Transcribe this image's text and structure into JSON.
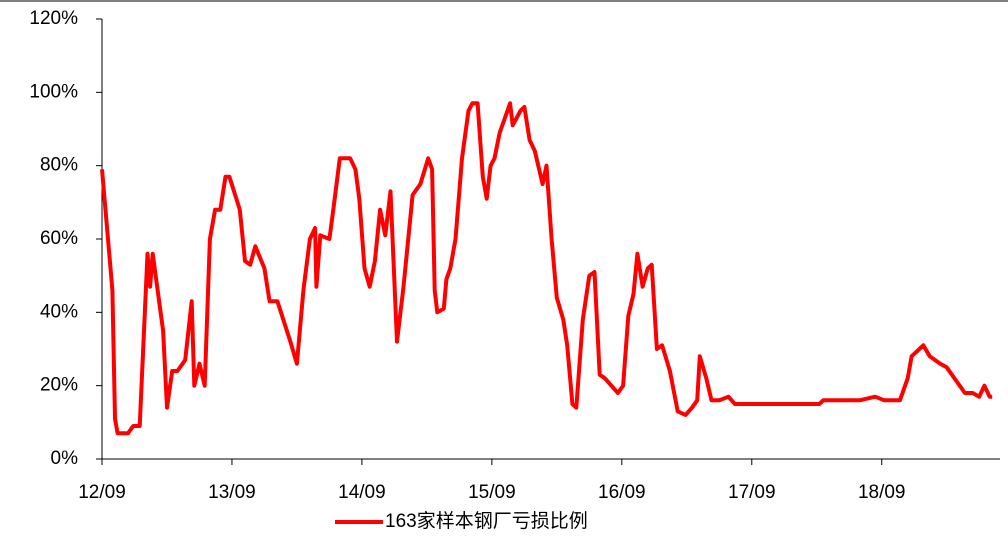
{
  "chart_data": {
    "type": "line",
    "x": [
      2012.67,
      2012.75,
      2012.77,
      2012.79,
      2012.87,
      2012.91,
      2012.96,
      2013.02,
      2013.04,
      2013.06,
      2013.14,
      2013.17,
      2013.21,
      2013.25,
      2013.31,
      2013.36,
      2013.38,
      2013.42,
      2013.46,
      2013.5,
      2013.54,
      2013.58,
      2013.62,
      2013.65,
      2013.73,
      2013.77,
      2013.81,
      2013.85,
      2013.92,
      2013.96,
      2014.02,
      2014.12,
      2014.17,
      2014.22,
      2014.27,
      2014.31,
      2014.32,
      2014.35,
      2014.42,
      2014.45,
      2014.5,
      2014.58,
      2014.62,
      2014.65,
      2014.69,
      2014.73,
      2014.77,
      2014.81,
      2014.85,
      2014.89,
      2014.94,
      2014.99,
      2015.06,
      2015.12,
      2015.18,
      2015.21,
      2015.23,
      2015.25,
      2015.3,
      2015.32,
      2015.35,
      2015.39,
      2015.44,
      2015.49,
      2015.52,
      2015.56,
      2015.6,
      2015.63,
      2015.66,
      2015.69,
      2015.73,
      2015.77,
      2015.81,
      2015.83,
      2015.89,
      2015.92,
      2015.96,
      2016.0,
      2016.06,
      2016.09,
      2016.13,
      2016.17,
      2016.22,
      2016.25,
      2016.29,
      2016.32,
      2016.37,
      2016.42,
      2016.46,
      2016.5,
      2016.54,
      2016.59,
      2016.64,
      2016.68,
      2016.72,
      2016.76,
      2016.79,
      2016.83,
      2016.87,
      2016.9,
      2016.94,
      2016.98,
      2017.04,
      2017.1,
      2017.16,
      2017.21,
      2017.25,
      2017.27,
      2017.32,
      2017.36,
      2017.42,
      2017.49,
      2017.54,
      2017.62,
      2017.67,
      2017.73,
      2017.89,
      2018.19,
      2018.22,
      2018.5,
      2018.62,
      2018.69,
      2018.81,
      2018.87,
      2018.9,
      2018.96,
      2018.99,
      2019.04,
      2019.12,
      2019.17,
      2019.25,
      2019.31,
      2019.37,
      2019.42,
      2019.46,
      2019.5,
      2019.52
    ],
    "series": [
      {
        "name": "163家样本钢厂亏损比例",
        "color": "#ff0000",
        "values": [
          79,
          46,
          11,
          7,
          7,
          9,
          9,
          56,
          47,
          56,
          35,
          14,
          24,
          24,
          27,
          43,
          20,
          26,
          20,
          60,
          68,
          68,
          77,
          77,
          68,
          54,
          53,
          58,
          52,
          43,
          43,
          32,
          26,
          46,
          60,
          63,
          47,
          61,
          60,
          68,
          82,
          82,
          79,
          71,
          52,
          47,
          54,
          68,
          61,
          73,
          32,
          47,
          72,
          75,
          82,
          79,
          46,
          40,
          41,
          49,
          52,
          60,
          82,
          95,
          97,
          97,
          77,
          71,
          80,
          82,
          89,
          93,
          97,
          91,
          95,
          96,
          87,
          84,
          75,
          80,
          60,
          44,
          38,
          31,
          15,
          14,
          38,
          50,
          51,
          23,
          22,
          20,
          18,
          20,
          39,
          45,
          56,
          47,
          52,
          53,
          30,
          31,
          24,
          13,
          12,
          14,
          16,
          28,
          22,
          16,
          16,
          17,
          15,
          15,
          15,
          15,
          15,
          15,
          16,
          16,
          17,
          16,
          16,
          22,
          28,
          30,
          31,
          28,
          26,
          25,
          21,
          18,
          18,
          17,
          20,
          17,
          17
        ]
      }
    ],
    "xlim": [
      2012.67,
      2019.58
    ],
    "xticks": [
      {
        "value": 2012.67,
        "label": "12/09"
      },
      {
        "value": 2013.67,
        "label": "13/09"
      },
      {
        "value": 2014.67,
        "label": "14/09"
      },
      {
        "value": 2015.67,
        "label": "15/09"
      },
      {
        "value": 2016.67,
        "label": "16/09"
      },
      {
        "value": 2017.67,
        "label": "17/09"
      },
      {
        "value": 2018.67,
        "label": "18/09"
      }
    ],
    "ylim": [
      0,
      120
    ],
    "yticks": [
      {
        "value": 0,
        "label": "0%"
      },
      {
        "value": 20,
        "label": "20%"
      },
      {
        "value": 40,
        "label": "40%"
      },
      {
        "value": 60,
        "label": "60%"
      },
      {
        "value": 80,
        "label": "80%"
      },
      {
        "value": 100,
        "label": "100%"
      },
      {
        "value": 120,
        "label": "120%"
      }
    ],
    "legend": "bottom"
  }
}
